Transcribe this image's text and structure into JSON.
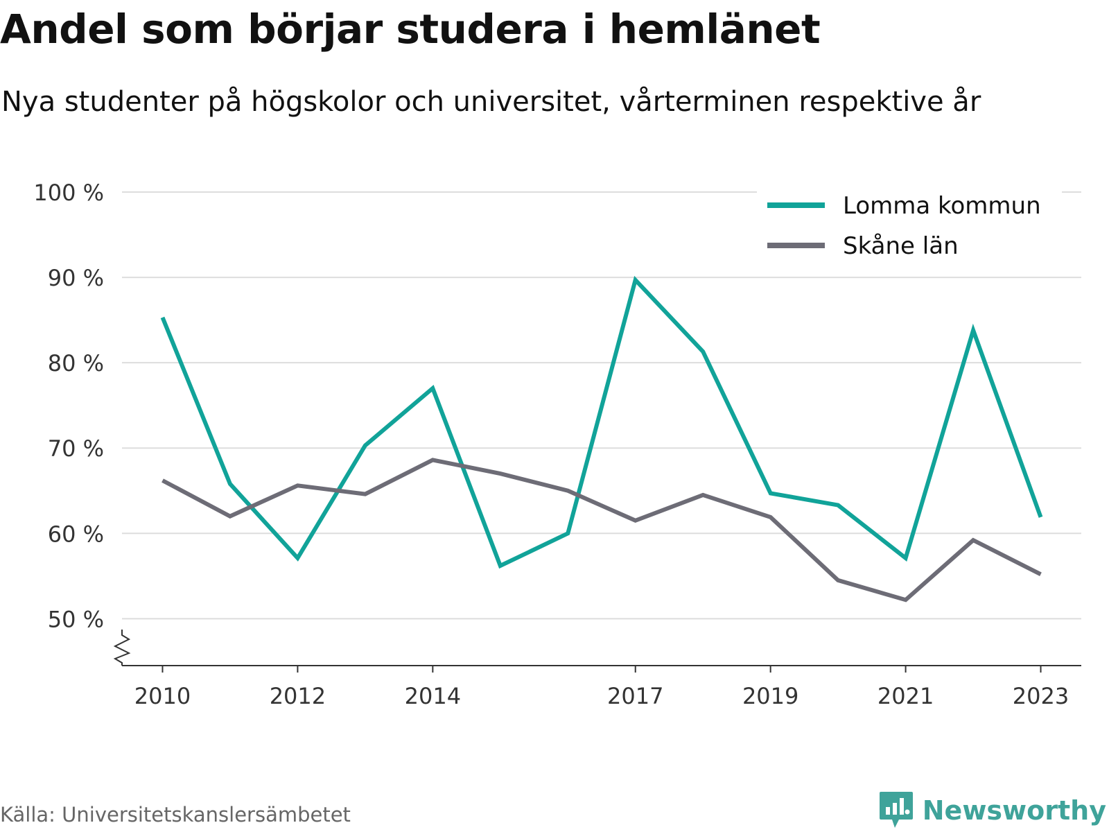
{
  "title": "Andel som börjar studera i hemlänet",
  "subtitle": "Nya studenter på högskolor och universitet, vårterminen respektive år",
  "source": "Källa: Universitetskanslersämbetet",
  "brand": "Newsworthy",
  "colors": {
    "lomma": "#11a399",
    "skane": "#6d6c76",
    "grid": "#dddddd",
    "axis": "#333333",
    "brand": "#3fa39a"
  },
  "chart_data": {
    "type": "line",
    "x": [
      2010,
      2011,
      2012,
      2013,
      2014,
      2015,
      2016,
      2017,
      2018,
      2019,
      2020,
      2021,
      2022,
      2023
    ],
    "x_tick_labels": [
      {
        "x": 2010,
        "label": "2010"
      },
      {
        "x": 2012,
        "label": "2012"
      },
      {
        "x": 2014,
        "label": "2014"
      },
      {
        "x": 2017,
        "label": "2017"
      },
      {
        "x": 2019,
        "label": "2019"
      },
      {
        "x": 2021,
        "label": "2021"
      },
      {
        "x": 2023,
        "label": "2023"
      }
    ],
    "y_ticks": [
      {
        "value": 50,
        "label": "50 %"
      },
      {
        "value": 60,
        "label": "60 %"
      },
      {
        "value": 70,
        "label": "70 %"
      },
      {
        "value": 80,
        "label": "80 %"
      },
      {
        "value": 90,
        "label": "90 %"
      },
      {
        "value": 100,
        "label": "100 %"
      }
    ],
    "ylim": [
      44.5,
      100
    ],
    "xlim": [
      2009.4,
      2023.6
    ],
    "y_axis_break": true,
    "grid": true,
    "legend_position": "top-right",
    "series": [
      {
        "name": "Lomma kommun",
        "color_key": "lomma",
        "values": [
          85.3,
          65.8,
          57.1,
          70.3,
          77.0,
          56.2,
          60.0,
          89.7,
          81.3,
          64.7,
          63.3,
          57.1,
          83.8,
          61.9
        ]
      },
      {
        "name": "Skåne län",
        "color_key": "skane",
        "values": [
          66.2,
          62.0,
          65.6,
          64.6,
          68.6,
          67.0,
          65.0,
          61.5,
          64.5,
          61.9,
          54.5,
          52.2,
          59.2,
          55.2
        ]
      }
    ]
  }
}
